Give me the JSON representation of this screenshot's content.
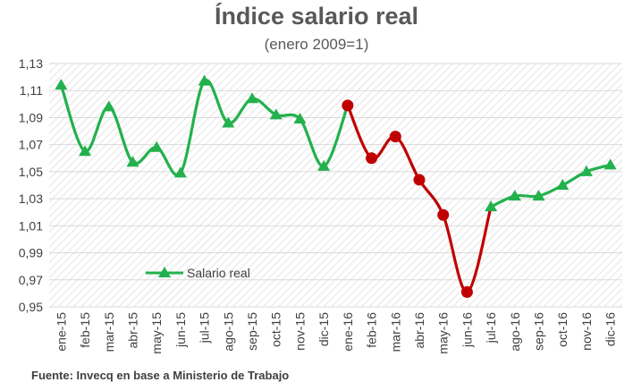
{
  "title": "Índice salario real",
  "subtitle": "(enero 2009=1)",
  "source": "Fuente: Invecq en base a Ministerio de Trabajo",
  "colors": {
    "green": "#22B14C",
    "red": "#C00000",
    "grid": "#d9d9d9",
    "hatch": "#e3e3e3"
  },
  "chart_data": {
    "type": "line",
    "categories": [
      "ene-15",
      "feb-15",
      "mar-15",
      "abr-15",
      "may-15",
      "jun-15",
      "jul-15",
      "ago-15",
      "sep-15",
      "oct-15",
      "nov-15",
      "dic-15",
      "ene-16",
      "feb-16",
      "mar-16",
      "abr-16",
      "may-16",
      "jun-16",
      "jul-16",
      "ago-16",
      "sep-16",
      "oct-16",
      "nov-16",
      "dic-16"
    ],
    "series": [
      {
        "name": "Salario real",
        "values": [
          1.114,
          1.065,
          1.098,
          1.057,
          1.068,
          1.049,
          1.117,
          1.086,
          1.104,
          1.092,
          1.089,
          1.054,
          1.099,
          1.06,
          1.076,
          1.044,
          1.018,
          0.961,
          1.024,
          1.032,
          1.032,
          1.04,
          1.05,
          1.055
        ]
      }
    ],
    "highlight_range": {
      "start": "dic-15",
      "end": "jul-16",
      "color": "#C00000"
    },
    "yticks": [
      "0,95",
      "0,97",
      "0,99",
      "1,01",
      "1,03",
      "1,05",
      "1,07",
      "1,09",
      "1,11",
      "1,13"
    ],
    "ylim": [
      0.95,
      1.13
    ],
    "legend": {
      "label": "Salario real",
      "position": "lower-left"
    },
    "grid": true
  }
}
